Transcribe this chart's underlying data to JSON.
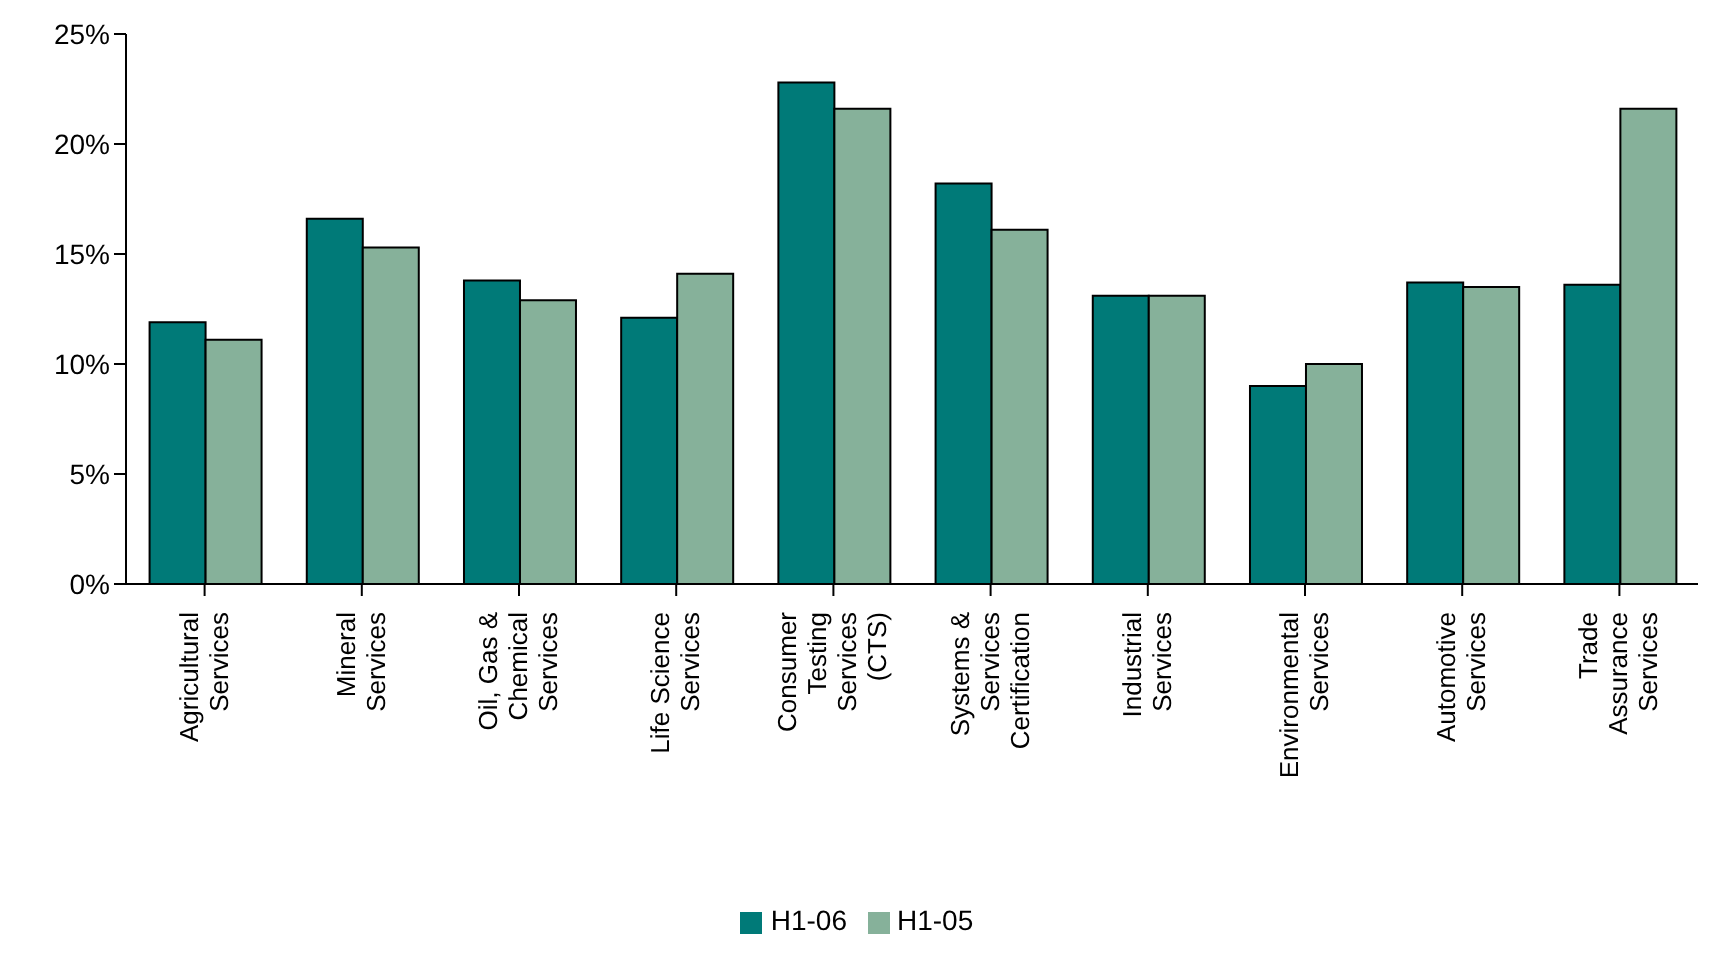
{
  "chart_data": {
    "type": "bar",
    "categories": [
      "Agricultural Services",
      "Mineral Services",
      "Oil, Gas & Chemical Services",
      "Life Science Services",
      "Consumer Testing Services (CTS)",
      "Systems & Services Certification",
      "Industrial Services",
      "Environmental Services",
      "Automotive Services",
      "Trade Assurance Services"
    ],
    "series": [
      {
        "name": "H1-06",
        "color": "#007a78",
        "values": [
          11.9,
          16.6,
          13.8,
          12.1,
          22.8,
          18.2,
          13.1,
          9.0,
          13.7,
          13.6
        ]
      },
      {
        "name": "H1-05",
        "color": "#86b19a",
        "values": [
          11.1,
          15.3,
          12.9,
          14.1,
          21.6,
          16.1,
          13.1,
          10.0,
          13.5,
          21.6
        ]
      }
    ],
    "ylim": [
      0,
      25
    ],
    "yticks": [
      {
        "value": 0,
        "label": "0%"
      },
      {
        "value": 5,
        "label": "5%"
      },
      {
        "value": 10,
        "label": "10%"
      },
      {
        "value": 15,
        "label": "15%"
      },
      {
        "value": 20,
        "label": "20%"
      },
      {
        "value": 25,
        "label": "25%"
      }
    ],
    "grid": false,
    "legend": "bottom"
  }
}
